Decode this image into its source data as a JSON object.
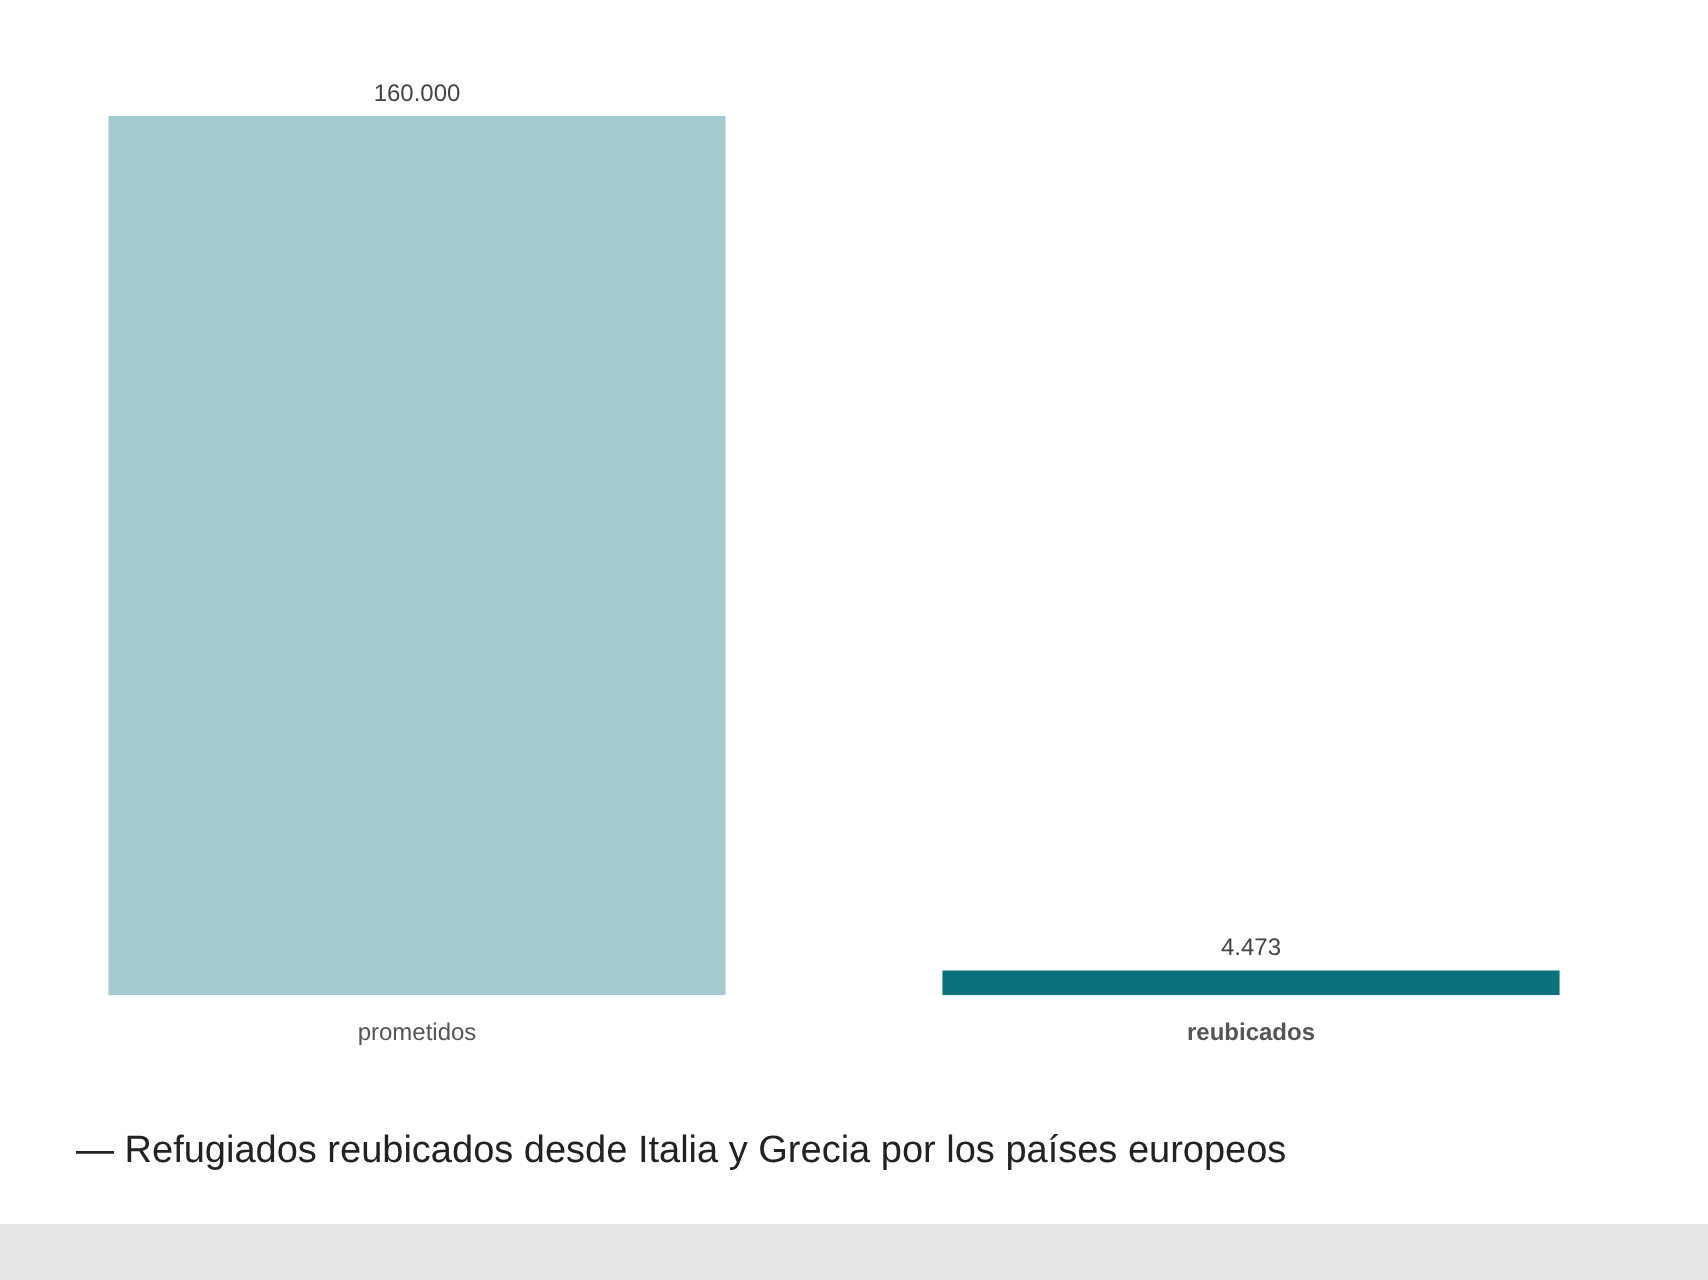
{
  "chart_data": {
    "type": "bar",
    "title": "— Refugiados reubicados desde Italia y Grecia por los países europeos",
    "categories": [
      "prometidos",
      "reubicados"
    ],
    "values": [
      160000,
      4473
    ],
    "colors": [
      "#a3cbcf",
      "#0b727c"
    ],
    "value_labels": [
      "160.000",
      "4.473"
    ]
  }
}
